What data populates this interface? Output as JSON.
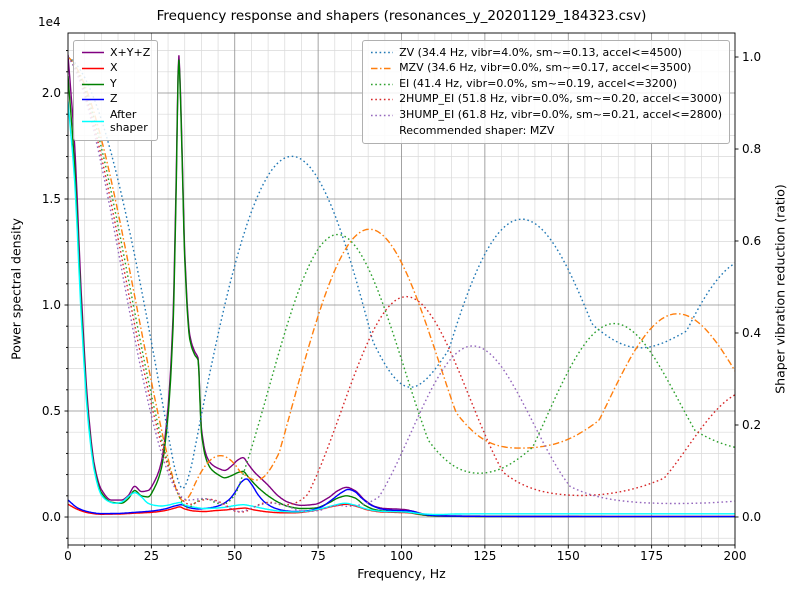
{
  "chart_data": {
    "type": "line",
    "title": "Frequency response and shapers (resonances_y_20201129_184323.csv)",
    "xlabel": "Frequency, Hz",
    "ylabel_left": "Power spectral density",
    "ylabel_right": "Shaper vibration reduction (ratio)",
    "y_offset_text": "1e4",
    "xlim": [
      0,
      200
    ],
    "xticks": [
      0,
      25,
      50,
      75,
      100,
      125,
      150,
      175,
      200
    ],
    "x_minor_step": 5,
    "ylim_left": [
      -1320,
      22830
    ],
    "yticks_left": [
      {
        "v": 0,
        "label": "0.0"
      },
      {
        "v": 5000,
        "label": "0.5"
      },
      {
        "v": 10000,
        "label": "1.0"
      },
      {
        "v": 15000,
        "label": "1.5"
      },
      {
        "v": 20000,
        "label": "2.0"
      }
    ],
    "y_minor_step_left": 1000,
    "ylim_right": [
      -0.0609,
      1.0522
    ],
    "yticks_right": [
      {
        "v": 0,
        "label": "0.0"
      },
      {
        "v": 0.2,
        "label": "0.2"
      },
      {
        "v": 0.4,
        "label": "0.4"
      },
      {
        "v": 0.6,
        "label": "0.6"
      },
      {
        "v": 0.8,
        "label": "0.8"
      },
      {
        "v": 1.0,
        "label": "1.0"
      }
    ],
    "grid": {
      "major_color": "#8c8c8c",
      "minor_color": "#d9d9d9"
    },
    "legend_note": "Recommended shaper: MZV",
    "psd_series": [
      {
        "name": "xyz",
        "label": "X+Y+Z",
        "color": "#800080",
        "axis": "left",
        "linestyle": "solid",
        "points": [
          [
            0,
            21800
          ],
          [
            2,
            17500
          ],
          [
            4,
            10500
          ],
          [
            6,
            5200
          ],
          [
            8,
            2400
          ],
          [
            10,
            1300
          ],
          [
            13,
            800
          ],
          [
            16,
            800
          ],
          [
            18,
            1000
          ],
          [
            20,
            1450
          ],
          [
            22,
            1200
          ],
          [
            24,
            1250
          ],
          [
            26,
            1700
          ],
          [
            28,
            2600
          ],
          [
            30,
            5200
          ],
          [
            31.5,
            9500
          ],
          [
            32.5,
            16500
          ],
          [
            33.2,
            21800
          ],
          [
            34,
            18500
          ],
          [
            35,
            12500
          ],
          [
            36.5,
            8600
          ],
          [
            38,
            7800
          ],
          [
            39,
            7500
          ],
          [
            40,
            4200
          ],
          [
            41.5,
            2900
          ],
          [
            43,
            2500
          ],
          [
            45,
            2300
          ],
          [
            47,
            2200
          ],
          [
            49,
            2400
          ],
          [
            51,
            2700
          ],
          [
            52.5,
            2800
          ],
          [
            54,
            2500
          ],
          [
            56,
            2100
          ],
          [
            58,
            1800
          ],
          [
            60,
            1500
          ],
          [
            63,
            1000
          ],
          [
            66,
            700
          ],
          [
            70,
            550
          ],
          [
            74,
            600
          ],
          [
            78,
            900
          ],
          [
            81,
            1250
          ],
          [
            83.5,
            1400
          ],
          [
            86,
            1250
          ],
          [
            89,
            800
          ],
          [
            92,
            500
          ],
          [
            95,
            400
          ],
          [
            98,
            380
          ],
          [
            101,
            350
          ],
          [
            104,
            250
          ],
          [
            107,
            130
          ],
          [
            110,
            80
          ],
          [
            115,
            50
          ],
          [
            125,
            40
          ],
          [
            150,
            30
          ],
          [
            175,
            25
          ],
          [
            200,
            25
          ]
        ]
      },
      {
        "name": "x",
        "label": "X",
        "color": "#ff0000",
        "axis": "left",
        "linestyle": "solid",
        "points": [
          [
            0,
            600
          ],
          [
            3,
            350
          ],
          [
            6,
            200
          ],
          [
            10,
            130
          ],
          [
            15,
            140
          ],
          [
            20,
            180
          ],
          [
            25,
            220
          ],
          [
            29,
            300
          ],
          [
            32,
            420
          ],
          [
            33.5,
            480
          ],
          [
            35,
            380
          ],
          [
            38,
            280
          ],
          [
            41,
            260
          ],
          [
            44,
            300
          ],
          [
            47,
            330
          ],
          [
            50,
            380
          ],
          [
            53,
            420
          ],
          [
            56,
            330
          ],
          [
            60,
            240
          ],
          [
            64,
            200
          ],
          [
            68,
            200
          ],
          [
            72,
            260
          ],
          [
            76,
            380
          ],
          [
            80,
            520
          ],
          [
            83.5,
            600
          ],
          [
            87,
            480
          ],
          [
            90,
            330
          ],
          [
            94,
            240
          ],
          [
            98,
            220
          ],
          [
            102,
            200
          ],
          [
            105,
            130
          ],
          [
            108,
            70
          ],
          [
            112,
            45
          ],
          [
            120,
            30
          ],
          [
            140,
            25
          ],
          [
            170,
            20
          ],
          [
            200,
            20
          ]
        ]
      },
      {
        "name": "y",
        "label": "Y",
        "color": "#008000",
        "axis": "left",
        "linestyle": "solid",
        "points": [
          [
            0,
            20800
          ],
          [
            2,
            16500
          ],
          [
            4,
            9800
          ],
          [
            6,
            4800
          ],
          [
            8,
            2200
          ],
          [
            10,
            1150
          ],
          [
            13,
            700
          ],
          [
            16,
            650
          ],
          [
            18,
            850
          ],
          [
            20,
            1250
          ],
          [
            22,
            1000
          ],
          [
            24,
            950
          ],
          [
            26,
            1400
          ],
          [
            28,
            2300
          ],
          [
            30,
            4800
          ],
          [
            31.5,
            9000
          ],
          [
            32.5,
            16000
          ],
          [
            33.2,
            21600
          ],
          [
            34,
            18200
          ],
          [
            35,
            12200
          ],
          [
            36.5,
            8400
          ],
          [
            38,
            7650
          ],
          [
            39,
            7400
          ],
          [
            40,
            4000
          ],
          [
            41.5,
            2700
          ],
          [
            43,
            2250
          ],
          [
            45,
            2000
          ],
          [
            47,
            1850
          ],
          [
            49,
            1950
          ],
          [
            51,
            2100
          ],
          [
            52.5,
            2150
          ],
          [
            54,
            1900
          ],
          [
            56,
            1550
          ],
          [
            58,
            1250
          ],
          [
            60,
            1000
          ],
          [
            63,
            700
          ],
          [
            66,
            500
          ],
          [
            70,
            400
          ],
          [
            74,
            420
          ],
          [
            78,
            650
          ],
          [
            81,
            900
          ],
          [
            83.5,
            1000
          ],
          [
            86,
            900
          ],
          [
            89,
            550
          ],
          [
            92,
            350
          ],
          [
            95,
            280
          ],
          [
            98,
            260
          ],
          [
            101,
            240
          ],
          [
            104,
            170
          ],
          [
            107,
            90
          ],
          [
            110,
            50
          ],
          [
            115,
            35
          ],
          [
            125,
            25
          ],
          [
            150,
            20
          ],
          [
            175,
            15
          ],
          [
            200,
            15
          ]
        ]
      },
      {
        "name": "z",
        "label": "Z",
        "color": "#0000ff",
        "axis": "left",
        "linestyle": "solid",
        "points": [
          [
            0,
            800
          ],
          [
            3,
            420
          ],
          [
            6,
            250
          ],
          [
            10,
            160
          ],
          [
            15,
            170
          ],
          [
            20,
            220
          ],
          [
            25,
            280
          ],
          [
            29,
            380
          ],
          [
            32,
            520
          ],
          [
            34,
            580
          ],
          [
            36,
            450
          ],
          [
            39,
            380
          ],
          [
            42,
            420
          ],
          [
            45,
            520
          ],
          [
            48,
            780
          ],
          [
            50,
            1150
          ],
          [
            52,
            1650
          ],
          [
            53.5,
            1800
          ],
          [
            55,
            1550
          ],
          [
            57,
            1050
          ],
          [
            59,
            700
          ],
          [
            62,
            420
          ],
          [
            65,
            300
          ],
          [
            68,
            260
          ],
          [
            72,
            300
          ],
          [
            76,
            480
          ],
          [
            79,
            800
          ],
          [
            82,
            1150
          ],
          [
            84,
            1300
          ],
          [
            86,
            1200
          ],
          [
            88,
            900
          ],
          [
            91,
            550
          ],
          [
            94,
            380
          ],
          [
            97,
            320
          ],
          [
            100,
            300
          ],
          [
            103,
            280
          ],
          [
            106,
            150
          ],
          [
            109,
            80
          ],
          [
            113,
            50
          ],
          [
            120,
            35
          ],
          [
            140,
            25
          ],
          [
            170,
            20
          ],
          [
            200,
            20
          ]
        ]
      },
      {
        "name": "after_shaper",
        "label": "After shaper",
        "color": "#00ffff",
        "axis": "left",
        "linestyle": "solid",
        "points": [
          [
            0,
            19600
          ],
          [
            2,
            15800
          ],
          [
            4,
            9400
          ],
          [
            6,
            4600
          ],
          [
            8,
            2100
          ],
          [
            10,
            1050
          ],
          [
            12,
            750
          ],
          [
            14,
            650
          ],
          [
            16,
            700
          ],
          [
            18,
            950
          ],
          [
            20,
            1150
          ],
          [
            22,
            950
          ],
          [
            24,
            650
          ],
          [
            26,
            550
          ],
          [
            28,
            520
          ],
          [
            30,
            560
          ],
          [
            32,
            640
          ],
          [
            33.5,
            680
          ],
          [
            35,
            560
          ],
          [
            38,
            460
          ],
          [
            41,
            400
          ],
          [
            44,
            420
          ],
          [
            47,
            460
          ],
          [
            50,
            540
          ],
          [
            52.5,
            580
          ],
          [
            55,
            520
          ],
          [
            58,
            420
          ],
          [
            61,
            330
          ],
          [
            64,
            270
          ],
          [
            68,
            240
          ],
          [
            72,
            280
          ],
          [
            76,
            400
          ],
          [
            80,
            560
          ],
          [
            83,
            650
          ],
          [
            86,
            560
          ],
          [
            89,
            400
          ],
          [
            92,
            300
          ],
          [
            95,
            260
          ],
          [
            98,
            250
          ],
          [
            101,
            240
          ],
          [
            104,
            190
          ],
          [
            107,
            140
          ],
          [
            111,
            120
          ],
          [
            116,
            140
          ],
          [
            122,
            150
          ],
          [
            130,
            150
          ],
          [
            145,
            150
          ],
          [
            160,
            150
          ],
          [
            180,
            150
          ],
          [
            200,
            150
          ]
        ]
      }
    ],
    "shaper_series": [
      {
        "name": "zv",
        "label": "ZV (34.4 Hz, vibr=4.0%, sm~=0.13, accel<=4500)",
        "shaper_type": "zv",
        "freq": 34.4,
        "vibr_pct": 4.0,
        "smoothing": 0.13,
        "max_accel": 4500,
        "color": "#1f77b4",
        "axis": "right",
        "linestyle": "dotted"
      },
      {
        "name": "mzv",
        "label": "MZV (34.6 Hz, vibr=0.0%, sm~=0.17, accel<=3500)",
        "shaper_type": "mzv",
        "freq": 34.6,
        "vibr_pct": 0.0,
        "smoothing": 0.17,
        "max_accel": 3500,
        "color": "#ff7f0e",
        "axis": "right",
        "linestyle": "dashdot"
      },
      {
        "name": "ei",
        "label": "EI (41.4 Hz, vibr=0.0%, sm~=0.19, accel<=3200)",
        "shaper_type": "ei",
        "freq": 41.4,
        "vibr_pct": 0.0,
        "smoothing": 0.19,
        "max_accel": 3200,
        "color": "#2ca02c",
        "axis": "right",
        "linestyle": "dotted"
      },
      {
        "name": "2hump_ei",
        "label": "2HUMP_EI (51.8 Hz, vibr=0.0%, sm~=0.20, accel<=3000)",
        "shaper_type": "2hump_ei",
        "freq": 51.8,
        "vibr_pct": 0.0,
        "smoothing": 0.2,
        "max_accel": 3000,
        "color": "#d62728",
        "axis": "right",
        "linestyle": "dotted"
      },
      {
        "name": "3hump_ei",
        "label": "3HUMP_EI (61.8 Hz, vibr=0.0%, sm~=0.21, accel<=2800)",
        "shaper_type": "3hump_ei",
        "freq": 61.8,
        "vibr_pct": 0.0,
        "smoothing": 0.21,
        "max_accel": 2800,
        "color": "#9467bd",
        "axis": "right",
        "linestyle": "dotted"
      }
    ],
    "recommended_shaper": "MZV"
  }
}
